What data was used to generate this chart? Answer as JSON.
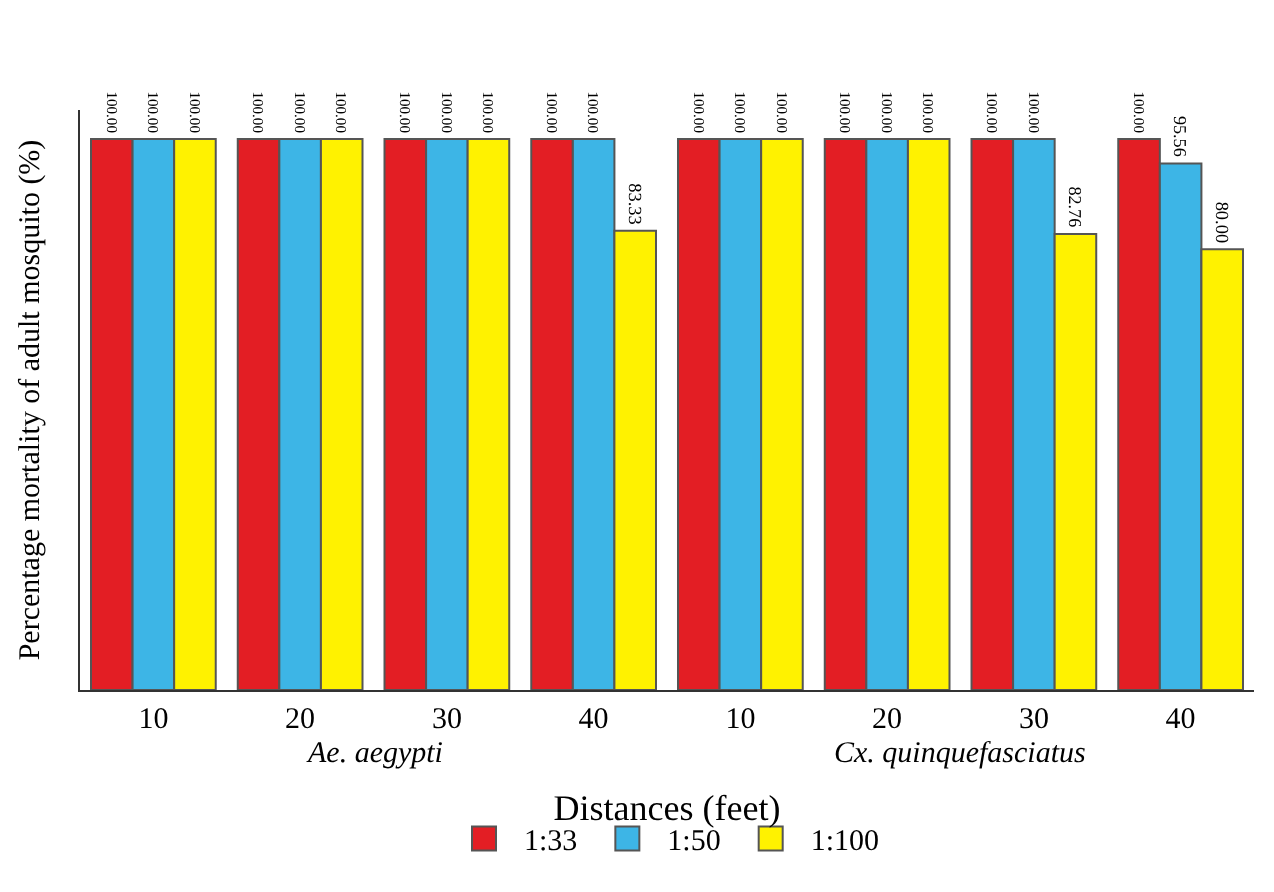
{
  "chart_data": {
    "type": "bar",
    "xlabel": "Distances (feet)",
    "ylabel": "Percentage mortality of adult mosquito (%)",
    "categories": [
      "10",
      "20",
      "30",
      "40",
      "10",
      "20",
      "30",
      "40"
    ],
    "series": [
      {
        "name": "1:33",
        "color": "#e31e24",
        "values": [
          100,
          100,
          100,
          100,
          100,
          100,
          100,
          100
        ],
        "value_labels": [
          "100.00",
          "100.00",
          "100.00",
          "100.00",
          "100.00",
          "100.00",
          "100.00",
          "100.00"
        ]
      },
      {
        "name": "1:50",
        "color": "#3db5e6",
        "values": [
          100,
          100,
          100,
          100,
          100,
          100,
          100,
          95.56
        ],
        "value_labels": [
          "100.00",
          "100.00",
          "100.00",
          "100.00",
          "100.00",
          "100.00",
          "100.00",
          "95.56"
        ]
      },
      {
        "name": "1:100",
        "color": "#fff200",
        "values": [
          100,
          100,
          100,
          83.33,
          100,
          100,
          82.76,
          80
        ],
        "value_labels": [
          "100.00",
          "100.00",
          "100.00",
          "83.33",
          "100.00",
          "100.00",
          "82.76",
          "80.00"
        ]
      }
    ],
    "annotations": [
      "Ae. aegypti",
      "Cx. quinquefasciatus"
    ],
    "legend": "bottom"
  }
}
